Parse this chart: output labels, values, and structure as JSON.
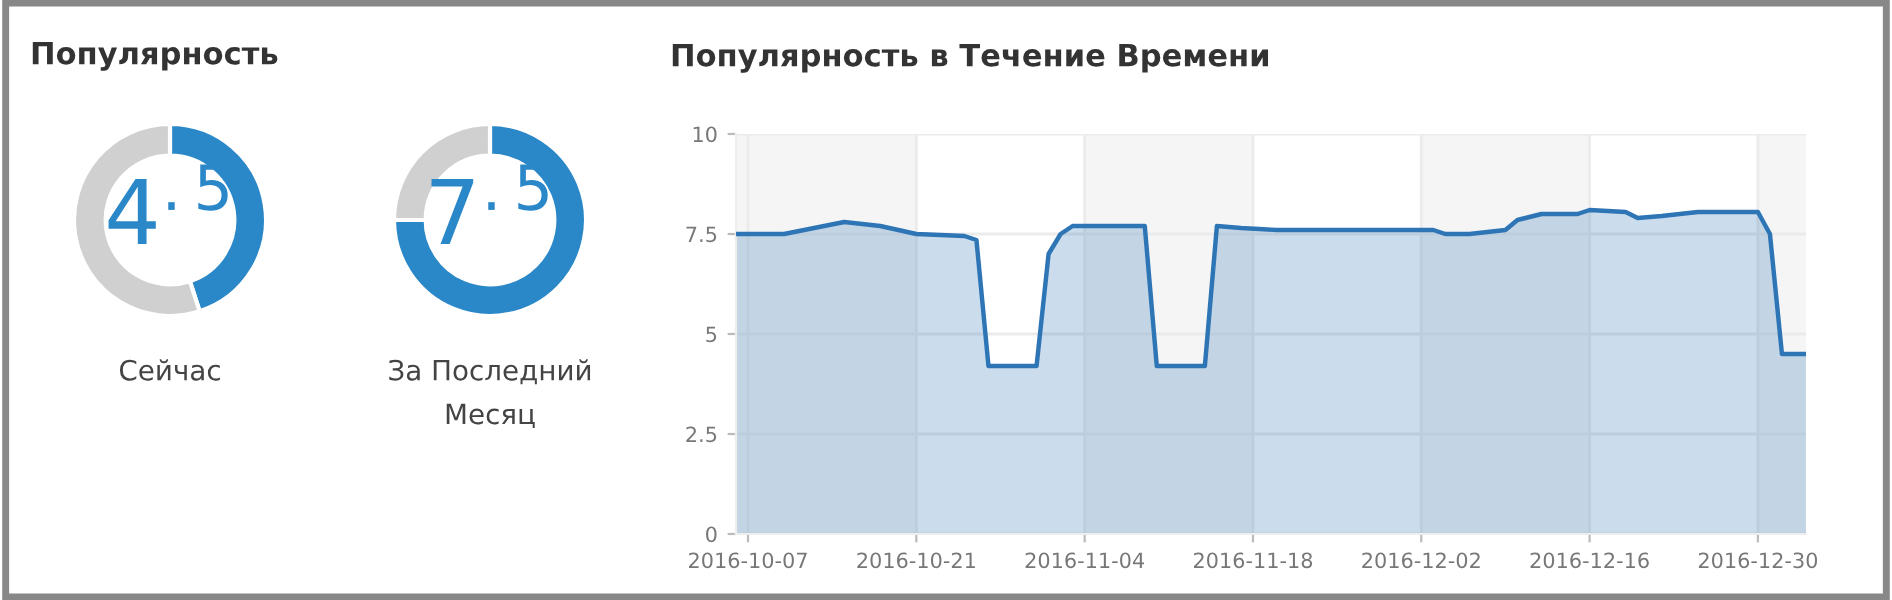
{
  "chart_data": [
    {
      "type": "donut",
      "title": "Популярность",
      "xlabel": "Сейчас",
      "categories": [
        null,
        null
      ],
      "values": [
        45,
        55
      ],
      "colors": [
        "#2a87c8",
        "#d0d0d0"
      ],
      "annotations": [
        "4$^{.5}$"
      ]
    },
    {
      "type": "donut",
      "xlabel": "За Последний Месяц",
      "categories": [
        null,
        null
      ],
      "values": [
        75,
        25
      ],
      "colors": [
        "#2a87c8",
        "#d0d0d0"
      ],
      "annotations": [
        "7$^{.5}$"
      ]
    },
    {
      "type": "area",
      "title": "Популярность в Течение Времени",
      "x": [
        "2016-10-06",
        "2016-10-10",
        "2016-10-15",
        "2016-10-18",
        "2016-10-21",
        "2016-10-25",
        "2016-10-26",
        "2016-10-27",
        "2016-10-31",
        "2016-11-01",
        "2016-11-02",
        "2016-11-03",
        "2016-11-09",
        "2016-11-10",
        "2016-11-14",
        "2016-11-15",
        "2016-11-17",
        "2016-11-20",
        "2016-12-03",
        "2016-12-04",
        "2016-12-06",
        "2016-12-09",
        "2016-12-10",
        "2016-12-12",
        "2016-12-15",
        "2016-12-16",
        "2016-12-19",
        "2016-12-20",
        "2016-12-22",
        "2016-12-25",
        "2016-12-30",
        "2016-12-31",
        "2017-01-01",
        "2017-01-03"
      ],
      "series": [
        {
          "color": "#2e75b6",
          "values": [
            7.5,
            7.5,
            7.8,
            7.7,
            7.5,
            7.45,
            7.35,
            4.2,
            4.2,
            7.0,
            7.5,
            7.7,
            7.7,
            4.2,
            4.2,
            7.7,
            7.65,
            7.6,
            7.6,
            7.5,
            7.5,
            7.6,
            7.85,
            8.0,
            8.0,
            8.1,
            8.05,
            7.9,
            7.95,
            8.05,
            8.05,
            7.5,
            4.5,
            4.5
          ]
        }
      ],
      "xlim": [
        "2016-10-06",
        "2017-01-03"
      ],
      "xticks": [
        "2016-10-07",
        "2016-10-21",
        "2016-11-04",
        "2016-11-18",
        "2016-12-02",
        "2016-12-16",
        "2016-12-30"
      ],
      "ylim": [
        0,
        10
      ],
      "yticks": [
        0,
        2.5,
        5,
        7.5,
        10
      ],
      "grid": true,
      "bands": [
        {
          "axis": "x",
          "from": "2016-10-06",
          "to": "2016-10-21",
          "color": "#f5f5f5"
        },
        {
          "axis": "x",
          "from": "2016-11-04",
          "to": "2016-11-18",
          "color": "#f5f5f5"
        },
        {
          "axis": "x",
          "from": "2016-12-02",
          "to": "2016-12-16",
          "color": "#f5f5f5"
        },
        {
          "axis": "x",
          "from": "2016-12-30",
          "to": "2017-01-03",
          "color": "#f5f5f5"
        }
      ]
    }
  ]
}
